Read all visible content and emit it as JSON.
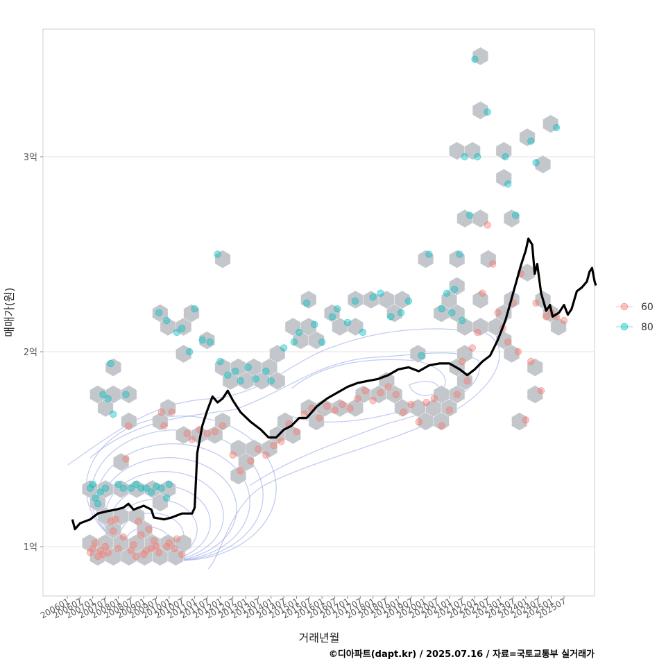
{
  "chart_data": {
    "type": "scatter",
    "title": "",
    "xlabel": "거래년월",
    "ylabel": "매매가(원)",
    "ylim": [
      0.75,
      3.75
    ],
    "y_ticks": [
      {
        "value": 1,
        "label": "1억"
      },
      {
        "value": 2,
        "label": "2억"
      },
      {
        "value": 3,
        "label": "3억"
      }
    ],
    "x_ticks": [
      "200601",
      "200607",
      "200701",
      "200707",
      "200801",
      "200807",
      "200901",
      "200907",
      "201001",
      "201007",
      "201101",
      "201107",
      "201201",
      "201207",
      "201301",
      "201307",
      "201401",
      "201407",
      "201501",
      "201507",
      "201601",
      "201607",
      "201701",
      "201707",
      "201801",
      "201807",
      "201901",
      "201907",
      "202001",
      "202007",
      "202101",
      "202107",
      "202201",
      "202207",
      "202301",
      "202307",
      "202401",
      "202407",
      "202501",
      "202507"
    ],
    "legend": {
      "position": "right",
      "items": [
        {
          "label": "60",
          "color": "#F8766D"
        },
        {
          "label": "80",
          "color": "#00BFC4"
        }
      ]
    },
    "caption": "©디아파트(dapt.kr) / 2025.07.16 / 자료=국토교통부 실거래가",
    "series": [
      {
        "name": "60",
        "color": "#F8766D",
        "points": [
          [
            2006.9,
            0.97
          ],
          [
            2007.0,
            0.99
          ],
          [
            2007.1,
            1.02
          ],
          [
            2007.2,
            0.95
          ],
          [
            2007.3,
            0.98
          ],
          [
            2007.4,
            0.96
          ],
          [
            2007.5,
            1.0
          ],
          [
            2007.6,
            0.97
          ],
          [
            2007.7,
            1.13
          ],
          [
            2007.8,
            1.08
          ],
          [
            2007.9,
            1.14
          ],
          [
            2008.0,
            0.99
          ],
          [
            2008.2,
            1.05
          ],
          [
            2008.3,
            1.45
          ],
          [
            2008.4,
            1.62
          ],
          [
            2008.5,
            0.98
          ],
          [
            2008.6,
            1.01
          ],
          [
            2008.7,
            0.95
          ],
          [
            2008.8,
            1.13
          ],
          [
            2008.9,
            1.06
          ],
          [
            2009.0,
            0.96
          ],
          [
            2009.1,
            0.98
          ],
          [
            2009.2,
            1.09
          ],
          [
            2009.3,
            0.99
          ],
          [
            2009.4,
            1.03
          ],
          [
            2009.5,
            1.0
          ],
          [
            2009.6,
            0.97
          ],
          [
            2009.7,
            1.69
          ],
          [
            2009.8,
            1.62
          ],
          [
            2009.9,
            1.0
          ],
          [
            2010.0,
            1.02
          ],
          [
            2010.1,
            1.69
          ],
          [
            2010.2,
            0.99
          ],
          [
            2010.3,
            1.04
          ],
          [
            2010.5,
            0.96
          ],
          [
            2010.7,
            1.58
          ],
          [
            2010.9,
            1.55
          ],
          [
            2011.2,
            1.6
          ],
          [
            2011.5,
            1.58
          ],
          [
            2011.8,
            1.59
          ],
          [
            2012.1,
            1.62
          ],
          [
            2012.5,
            1.47
          ],
          [
            2012.8,
            1.39
          ],
          [
            2013.2,
            1.44
          ],
          [
            2013.5,
            1.5
          ],
          [
            2013.8,
            1.47
          ],
          [
            2014.1,
            1.52
          ],
          [
            2014.4,
            1.54
          ],
          [
            2014.7,
            1.63
          ],
          [
            2015.0,
            1.59
          ],
          [
            2015.3,
            1.68
          ],
          [
            2015.6,
            1.71
          ],
          [
            2015.9,
            1.66
          ],
          [
            2016.2,
            1.72
          ],
          [
            2016.5,
            1.7
          ],
          [
            2016.8,
            1.73
          ],
          [
            2017.1,
            1.71
          ],
          [
            2017.4,
            1.76
          ],
          [
            2017.7,
            1.8
          ],
          [
            2018.0,
            1.75
          ],
          [
            2018.3,
            1.79
          ],
          [
            2018.6,
            1.82
          ],
          [
            2018.9,
            1.78
          ],
          [
            2019.2,
            1.69
          ],
          [
            2019.5,
            1.73
          ],
          [
            2019.8,
            1.64
          ],
          [
            2020.1,
            1.74
          ],
          [
            2020.4,
            1.76
          ],
          [
            2020.7,
            1.62
          ],
          [
            2021.0,
            1.7
          ],
          [
            2021.3,
            1.78
          ],
          [
            2021.5,
            1.95
          ],
          [
            2021.7,
            1.85
          ],
          [
            2021.9,
            2.02
          ],
          [
            2022.1,
            2.1
          ],
          [
            2022.3,
            2.3
          ],
          [
            2022.5,
            2.65
          ],
          [
            2022.7,
            2.45
          ],
          [
            2022.9,
            2.2
          ],
          [
            2023.1,
            2.12
          ],
          [
            2023.3,
            2.05
          ],
          [
            2023.5,
            2.25
          ],
          [
            2023.7,
            2.0
          ],
          [
            2023.8,
            2.4
          ],
          [
            2024.0,
            1.65
          ],
          [
            2024.2,
            1.95
          ],
          [
            2024.4,
            2.25
          ],
          [
            2024.6,
            1.8
          ],
          [
            2024.8,
            2.18
          ],
          [
            2025.0,
            2.2
          ],
          [
            2025.2,
            2.18
          ],
          [
            2025.5,
            2.16
          ]
        ]
      },
      {
        "name": "80",
        "color": "#00BFC4",
        "points": [
          [
            2006.9,
            1.3
          ],
          [
            2007.0,
            1.32
          ],
          [
            2007.1,
            1.25
          ],
          [
            2007.2,
            1.22
          ],
          [
            2007.3,
            1.28
          ],
          [
            2007.4,
            1.78
          ],
          [
            2007.5,
            1.3
          ],
          [
            2007.6,
            1.76
          ],
          [
            2007.7,
            1.94
          ],
          [
            2007.8,
            1.68
          ],
          [
            2008.0,
            1.32
          ],
          [
            2008.2,
            1.3
          ],
          [
            2008.3,
            1.78
          ],
          [
            2008.5,
            1.3
          ],
          [
            2008.7,
            1.32
          ],
          [
            2008.9,
            1.3
          ],
          [
            2009.1,
            1.3
          ],
          [
            2009.3,
            1.28
          ],
          [
            2009.5,
            1.31
          ],
          [
            2009.7,
            1.3
          ],
          [
            2009.9,
            1.25
          ],
          [
            2010.0,
            1.32
          ],
          [
            2009.6,
            2.2
          ],
          [
            2009.9,
            2.16
          ],
          [
            2010.3,
            2.1
          ],
          [
            2010.5,
            2.12
          ],
          [
            2010.8,
            2.0
          ],
          [
            2011.0,
            2.22
          ],
          [
            2011.3,
            2.06
          ],
          [
            2011.6,
            2.05
          ],
          [
            2011.9,
            2.5
          ],
          [
            2012.0,
            1.95
          ],
          [
            2012.3,
            1.88
          ],
          [
            2012.6,
            1.9
          ],
          [
            2012.8,
            1.85
          ],
          [
            2013.1,
            1.92
          ],
          [
            2013.4,
            1.86
          ],
          [
            2013.8,
            1.9
          ],
          [
            2014.0,
            1.85
          ],
          [
            2014.5,
            2.02
          ],
          [
            2014.9,
            2.05
          ],
          [
            2015.1,
            2.1
          ],
          [
            2015.4,
            2.25
          ],
          [
            2015.7,
            2.14
          ],
          [
            2016.0,
            2.05
          ],
          [
            2016.4,
            2.18
          ],
          [
            2016.6,
            2.22
          ],
          [
            2017.0,
            2.15
          ],
          [
            2017.3,
            2.26
          ],
          [
            2017.6,
            2.1
          ],
          [
            2018.0,
            2.28
          ],
          [
            2018.3,
            2.3
          ],
          [
            2018.7,
            2.18
          ],
          [
            2019.1,
            2.2
          ],
          [
            2019.4,
            2.26
          ],
          [
            2019.9,
            1.98
          ],
          [
            2020.2,
            2.5
          ],
          [
            2020.7,
            2.22
          ],
          [
            2020.9,
            2.3
          ],
          [
            2021.1,
            2.2
          ],
          [
            2021.2,
            2.32
          ],
          [
            2021.4,
            2.5
          ],
          [
            2021.5,
            2.16
          ],
          [
            2021.6,
            3.0
          ],
          [
            2021.8,
            2.7
          ],
          [
            2022.0,
            3.5
          ],
          [
            2022.1,
            3.0
          ],
          [
            2022.5,
            3.23
          ],
          [
            2023.2,
            3.0
          ],
          [
            2023.3,
            2.86
          ],
          [
            2023.6,
            2.7
          ],
          [
            2024.2,
            3.08
          ],
          [
            2024.4,
            2.97
          ],
          [
            2025.2,
            3.15
          ]
        ]
      }
    ],
    "median_line": [
      [
        2006.2,
        1.14
      ],
      [
        2006.3,
        1.09
      ],
      [
        2006.5,
        1.12
      ],
      [
        2006.9,
        1.14
      ],
      [
        2007.2,
        1.17
      ],
      [
        2007.5,
        1.18
      ],
      [
        2007.9,
        1.19
      ],
      [
        2008.2,
        1.2
      ],
      [
        2008.4,
        1.22
      ],
      [
        2008.6,
        1.19
      ],
      [
        2009.0,
        1.21
      ],
      [
        2009.3,
        1.19
      ],
      [
        2009.4,
        1.15
      ],
      [
        2009.8,
        1.14
      ],
      [
        2010.1,
        1.15
      ],
      [
        2010.5,
        1.17
      ],
      [
        2010.9,
        1.17
      ],
      [
        2011.0,
        1.2
      ],
      [
        2011.1,
        1.48
      ],
      [
        2011.3,
        1.62
      ],
      [
        2011.5,
        1.7
      ],
      [
        2011.7,
        1.77
      ],
      [
        2011.9,
        1.74
      ],
      [
        2012.1,
        1.76
      ],
      [
        2012.3,
        1.8
      ],
      [
        2012.5,
        1.75
      ],
      [
        2012.8,
        1.69
      ],
      [
        2013.2,
        1.64
      ],
      [
        2013.6,
        1.6
      ],
      [
        2013.9,
        1.56
      ],
      [
        2014.2,
        1.56
      ],
      [
        2014.5,
        1.6
      ],
      [
        2014.8,
        1.62
      ],
      [
        2015.1,
        1.66
      ],
      [
        2015.4,
        1.66
      ],
      [
        2015.8,
        1.72
      ],
      [
        2016.2,
        1.76
      ],
      [
        2016.6,
        1.79
      ],
      [
        2017.0,
        1.82
      ],
      [
        2017.4,
        1.84
      ],
      [
        2017.8,
        1.85
      ],
      [
        2018.2,
        1.86
      ],
      [
        2018.6,
        1.88
      ],
      [
        2019.0,
        1.91
      ],
      [
        2019.4,
        1.92
      ],
      [
        2019.8,
        1.9
      ],
      [
        2020.2,
        1.93
      ],
      [
        2020.6,
        1.94
      ],
      [
        2021.0,
        1.94
      ],
      [
        2021.4,
        1.91
      ],
      [
        2021.7,
        1.88
      ],
      [
        2022.0,
        1.91
      ],
      [
        2022.3,
        1.95
      ],
      [
        2022.6,
        1.98
      ],
      [
        2022.9,
        2.06
      ],
      [
        2023.2,
        2.16
      ],
      [
        2023.5,
        2.3
      ],
      [
        2023.8,
        2.44
      ],
      [
        2024.0,
        2.52
      ],
      [
        2024.1,
        2.58
      ],
      [
        2024.25,
        2.55
      ],
      [
        2024.35,
        2.4
      ],
      [
        2024.45,
        2.45
      ],
      [
        2024.6,
        2.3
      ],
      [
        2024.8,
        2.21
      ],
      [
        2024.95,
        2.24
      ],
      [
        2025.05,
        2.18
      ],
      [
        2025.3,
        2.2
      ],
      [
        2025.5,
        2.24
      ],
      [
        2025.65,
        2.19
      ],
      [
        2025.8,
        2.22
      ],
      [
        2026.0,
        2.31
      ],
      [
        2026.2,
        2.33
      ],
      [
        2026.4,
        2.36
      ],
      [
        2026.5,
        2.41
      ],
      [
        2026.6,
        2.43
      ],
      [
        2026.7,
        2.36
      ],
      [
        2026.75,
        2.34
      ]
    ]
  }
}
